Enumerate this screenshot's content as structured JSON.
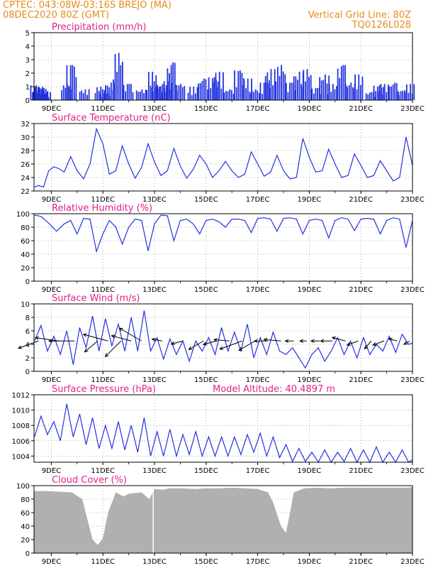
{
  "header": {
    "line1_left": "CPTEC:   043:08W-03:16S   BREJO (MA)",
    "line2_left": "08DEC2020 80Z (GMT)",
    "line1_right": "Vertical Grid Line: 80Z",
    "line2_right": "TQ0126L028"
  },
  "colors": {
    "header": "#e88a1a",
    "title": "#e0208a",
    "series": "#2233dd",
    "cloud": "#b0b0b0",
    "grid": "#999999",
    "arrow": "#000000"
  },
  "x_axis": {
    "tick_labels": [
      "9DEC",
      "11DEC",
      "13DEC",
      "15DEC",
      "17DEC",
      "19DEC",
      "21DEC",
      "23DEC"
    ],
    "tick_days": [
      9,
      11,
      13,
      15,
      17,
      19,
      21,
      23
    ],
    "range_days": [
      8.33,
      23.0
    ]
  },
  "chart_data": [
    {
      "id": "precip",
      "type": "bar",
      "title": "Precipitation (mm/h)",
      "ylim": [
        0,
        5
      ],
      "yticks": [
        0,
        1,
        2,
        3,
        4,
        5
      ],
      "x_days": [
        8.4,
        8.5,
        8.6,
        8.7,
        8.8,
        9.6,
        9.8,
        10.3,
        10.9,
        11.1,
        11.3,
        11.6,
        12.0,
        12.5,
        12.9,
        13.1,
        13.3,
        13.5,
        13.7,
        14.0,
        14.5,
        14.9,
        15.3,
        15.5,
        15.9,
        16.3,
        16.6,
        16.9,
        17.3,
        17.5,
        17.9,
        18.3,
        18.6,
        18.9,
        19.3,
        19.6,
        19.9,
        20.3,
        20.6,
        20.9,
        21.4,
        21.7,
        21.9,
        22.3,
        22.6,
        22.9
      ],
      "values": [
        1.1,
        1.0,
        0.8,
        0.9,
        0.6,
        1.2,
        2.6,
        0.8,
        1.0,
        0.5,
        1.3,
        3.5,
        1.2,
        0.8,
        2.1,
        1.0,
        1.2,
        1.4,
        2.8,
        1.2,
        1.0,
        1.6,
        1.7,
        2.1,
        0.8,
        2.2,
        1.6,
        0.8,
        1.3,
        2.3,
        2.6,
        1.3,
        2.1,
        2.3,
        0.9,
        1.9,
        1.2,
        2.6,
        1.3,
        1.9,
        0.6,
        1.1,
        1.2,
        1.3,
        0.7,
        1.2
      ]
    },
    {
      "id": "temperature",
      "type": "line",
      "title": "Surface Temperature (nC)",
      "ylim": [
        22,
        32
      ],
      "yticks": [
        22,
        24,
        26,
        28,
        30,
        32
      ],
      "x_days": [
        8.35,
        8.5,
        8.7,
        8.9,
        9.1,
        9.3,
        9.5,
        9.75,
        10.0,
        10.25,
        10.5,
        10.75,
        11.0,
        11.25,
        11.5,
        11.75,
        12.0,
        12.25,
        12.5,
        12.75,
        13.0,
        13.25,
        13.5,
        13.75,
        14.0,
        14.25,
        14.5,
        14.75,
        15.0,
        15.25,
        15.5,
        15.75,
        16.0,
        16.25,
        16.5,
        16.75,
        17.0,
        17.25,
        17.5,
        17.75,
        18.0,
        18.25,
        18.5,
        18.75,
        19.0,
        19.25,
        19.5,
        19.75,
        20.0,
        20.25,
        20.5,
        20.75,
        21.0,
        21.25,
        21.5,
        21.75,
        22.0,
        22.25,
        22.5,
        22.75,
        23.0
      ],
      "values": [
        22.6,
        22.8,
        22.6,
        25.0,
        25.6,
        25.3,
        24.8,
        27.1,
        25.0,
        23.8,
        26.0,
        31.2,
        29.0,
        24.5,
        25.0,
        28.7,
        26.0,
        23.9,
        25.5,
        29.0,
        26.3,
        24.3,
        25.0,
        28.3,
        25.7,
        23.9,
        25.2,
        27.3,
        26.0,
        24.0,
        25.0,
        26.4,
        25.0,
        24.0,
        24.5,
        27.8,
        26.0,
        24.2,
        24.8,
        27.3,
        25.0,
        23.8,
        24.0,
        29.8,
        27.0,
        24.8,
        25.0,
        28.2,
        26.0,
        24.0,
        24.3,
        27.5,
        25.8,
        24.0,
        24.3,
        26.5,
        25.0,
        23.5,
        24.0,
        30.0,
        25.8
      ]
    },
    {
      "id": "humidity",
      "type": "line",
      "title": "Relative Humidity (%)",
      "ylim": [
        0,
        100
      ],
      "yticks": [
        0,
        20,
        40,
        60,
        80,
        100
      ],
      "x_days": [
        8.35,
        8.6,
        8.9,
        9.2,
        9.5,
        9.75,
        10.0,
        10.25,
        10.5,
        10.75,
        11.0,
        11.25,
        11.5,
        11.75,
        12.0,
        12.25,
        12.5,
        12.75,
        13.0,
        13.25,
        13.5,
        13.75,
        14.0,
        14.25,
        14.5,
        14.75,
        15.0,
        15.25,
        15.5,
        15.75,
        16.0,
        16.25,
        16.5,
        16.75,
        17.0,
        17.25,
        17.5,
        17.75,
        18.0,
        18.25,
        18.5,
        18.75,
        19.0,
        19.25,
        19.5,
        19.75,
        20.0,
        20.25,
        20.5,
        20.75,
        21.0,
        21.25,
        21.5,
        21.75,
        22.0,
        22.25,
        22.5,
        22.75,
        23.0
      ],
      "values": [
        98,
        96,
        86,
        74,
        85,
        90,
        70,
        93,
        92,
        44,
        70,
        90,
        80,
        55,
        80,
        92,
        90,
        45,
        85,
        98,
        97,
        60,
        90,
        92,
        85,
        70,
        90,
        92,
        88,
        80,
        92,
        92,
        90,
        72,
        93,
        94,
        92,
        74,
        93,
        94,
        92,
        70,
        90,
        92,
        90,
        64,
        90,
        94,
        92,
        75,
        92,
        93,
        92,
        70,
        90,
        94,
        92,
        50,
        90
      ]
    },
    {
      "id": "wind",
      "type": "line",
      "title": "Surface Wind (m/s)",
      "ylim": [
        0,
        10
      ],
      "yticks": [
        0,
        2,
        4,
        6,
        8,
        10
      ],
      "x_days": [
        8.35,
        8.6,
        8.85,
        9.1,
        9.35,
        9.6,
        9.85,
        10.1,
        10.35,
        10.6,
        10.85,
        11.1,
        11.35,
        11.6,
        11.85,
        12.1,
        12.35,
        12.6,
        12.85,
        13.1,
        13.35,
        13.6,
        13.85,
        14.1,
        14.35,
        14.6,
        14.85,
        15.1,
        15.35,
        15.6,
        15.85,
        16.1,
        16.35,
        16.6,
        16.85,
        17.1,
        17.35,
        17.6,
        17.85,
        18.1,
        18.35,
        18.6,
        18.85,
        19.1,
        19.35,
        19.6,
        19.85,
        20.1,
        20.35,
        20.6,
        20.85,
        21.1,
        21.35,
        21.6,
        21.85,
        22.1,
        22.35,
        22.6,
        22.85,
        23.0
      ],
      "values": [
        4.5,
        6.8,
        3.0,
        5.2,
        2.5,
        6.0,
        1.0,
        6.5,
        3.5,
        8.2,
        3.0,
        7.8,
        3.8,
        7.0,
        3.0,
        8.0,
        3.0,
        9.0,
        3.0,
        5.0,
        1.8,
        4.8,
        2.5,
        4.5,
        1.5,
        4.5,
        3.0,
        5.0,
        2.5,
        6.5,
        3.0,
        5.8,
        3.0,
        7.0,
        2.0,
        5.0,
        2.5,
        5.8,
        3.0,
        2.5,
        3.5,
        2.0,
        0.5,
        2.5,
        3.5,
        1.5,
        3.0,
        5.0,
        2.5,
        4.5,
        2.0,
        5.0,
        2.5,
        4.0,
        3.0,
        5.2,
        2.8,
        5.5,
        4.0,
        4.2
      ],
      "vectors": {
        "x_days": [
          8.5,
          9.3,
          9.9,
          10.8,
          11.2,
          11.7,
          12.1,
          12.5,
          13.3,
          14.1,
          14.9,
          15.4,
          15.9,
          16.4,
          16.9,
          17.4,
          17.9,
          18.4,
          18.9,
          19.4,
          19.9,
          20.4,
          20.9,
          21.4,
          21.9,
          22.4,
          22.9
        ],
        "speed": [
          2.5,
          2.8,
          3.0,
          2.0,
          3.0,
          2.6,
          2.4,
          3.0,
          1.2,
          1.4,
          2.0,
          1.6,
          1.8,
          2.8,
          2.2,
          1.6,
          2.0,
          1.0,
          0.8,
          1.0,
          1.4,
          1.6,
          1.4,
          1.2,
          1.4,
          1.0,
          0.8
        ],
        "dir_deg": [
          200,
          172,
          180,
          220,
          165,
          225,
          165,
          150,
          170,
          195,
          210,
          195,
          175,
          200,
          210,
          180,
          175,
          180,
          180,
          180,
          180,
          165,
          200,
          230,
          200,
          165,
          210
        ]
      }
    },
    {
      "id": "pressure",
      "type": "line",
      "title": "Surface Pressure (hPa)",
      "extra_label": "Model Altitude: 40.4897  m",
      "ylim": [
        1003.2,
        1012
      ],
      "yticks": [
        1004,
        1006,
        1008,
        1010,
        1012
      ],
      "x_days": [
        8.35,
        8.6,
        8.85,
        9.1,
        9.35,
        9.6,
        9.85,
        10.1,
        10.35,
        10.6,
        10.85,
        11.1,
        11.35,
        11.6,
        11.85,
        12.1,
        12.35,
        12.6,
        12.85,
        13.1,
        13.35,
        13.6,
        13.85,
        14.1,
        14.35,
        14.6,
        14.85,
        15.1,
        15.35,
        15.6,
        15.85,
        16.1,
        16.35,
        16.6,
        16.85,
        17.1,
        17.35,
        17.6,
        17.85,
        18.1,
        18.35,
        18.6,
        18.85,
        19.1,
        19.35,
        19.6,
        19.85,
        20.1,
        20.35,
        20.6,
        20.85,
        21.1,
        21.35,
        21.6,
        21.85,
        22.1,
        22.35,
        22.6,
        22.85,
        23.0
      ],
      "values": [
        1006.5,
        1009.2,
        1006.8,
        1008.5,
        1006.0,
        1010.8,
        1006.5,
        1009.5,
        1005.5,
        1009.0,
        1005.0,
        1008.0,
        1005.0,
        1008.5,
        1004.8,
        1008.0,
        1004.5,
        1009.0,
        1004.0,
        1007.2,
        1004.0,
        1007.5,
        1004.0,
        1006.8,
        1004.2,
        1007.2,
        1004.0,
        1006.5,
        1004.0,
        1006.5,
        1004.0,
        1006.5,
        1004.2,
        1006.8,
        1004.5,
        1007.0,
        1004.0,
        1006.5,
        1003.8,
        1005.5,
        1003.3,
        1005.0,
        1003.3,
        1004.5,
        1003.2,
        1004.8,
        1003.2,
        1004.5,
        1003.3,
        1005.0,
        1003.2,
        1004.8,
        1003.2,
        1005.2,
        1003.2,
        1004.5,
        1003.2,
        1004.8,
        1003.2,
        1003.5
      ]
    },
    {
      "id": "cloud",
      "type": "area",
      "title": "Cloud Cover (%)",
      "ylim": [
        0,
        100
      ],
      "yticks": [
        0,
        20,
        40,
        60,
        80,
        100
      ],
      "x_days": [
        8.33,
        8.8,
        9.3,
        9.8,
        10.2,
        10.4,
        10.6,
        10.8,
        11.0,
        11.2,
        11.5,
        11.8,
        12.0,
        12.5,
        12.8,
        13.0,
        13.3,
        13.6,
        14.0,
        14.6,
        15.0,
        15.5,
        16.0,
        16.5,
        17.0,
        17.4,
        17.6,
        17.9,
        18.1,
        18.4,
        18.8,
        19.3,
        19.8,
        20.3,
        20.8,
        21.3,
        21.8,
        22.3,
        22.8,
        23.0
      ],
      "values": [
        92,
        92,
        91,
        90,
        80,
        50,
        20,
        12,
        22,
        60,
        90,
        84,
        88,
        90,
        80,
        95,
        94,
        96,
        96,
        95,
        96,
        96,
        97,
        96,
        95,
        90,
        75,
        40,
        30,
        90,
        96,
        97,
        96,
        97,
        97,
        97,
        97,
        97,
        97,
        98
      ]
    }
  ]
}
